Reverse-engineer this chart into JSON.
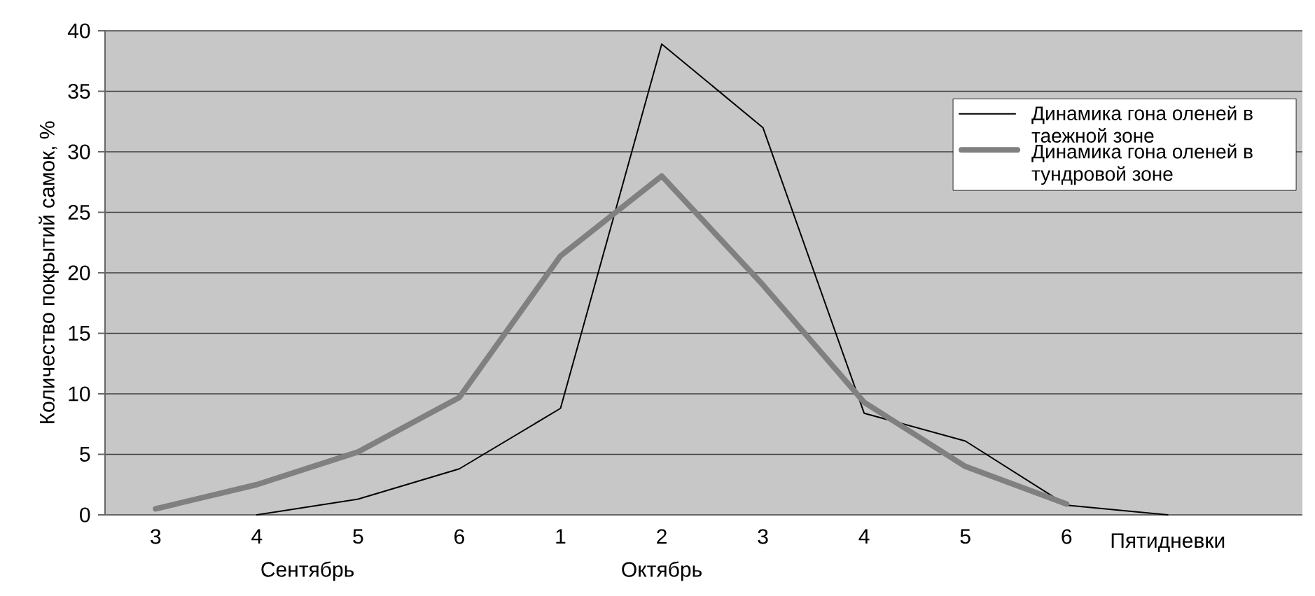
{
  "chart_data": {
    "type": "line",
    "categories": [
      "3",
      "4",
      "5",
      "6",
      "1",
      "2",
      "3",
      "4",
      "5",
      "6",
      null
    ],
    "xlabel": "Пятидневки",
    "ylabel": "Количество покрытий самок, %",
    "annotations": [
      "Сентябрь",
      "Октябрь"
    ],
    "series": [
      {
        "name": "Динамика гона оленей в таежной  зоне",
        "color": "#000000",
        "values": [
          null,
          0,
          1.3,
          3.8,
          8.8,
          38.9,
          32,
          8.4,
          6.1,
          0.8,
          0
        ]
      },
      {
        "name": "Динамика гона оленей в тундровой зоне",
        "color": "#808080",
        "values": [
          0.5,
          2.5,
          5.2,
          9.7,
          21.4,
          28,
          19,
          9.3,
          4,
          0.9,
          null
        ]
      }
    ],
    "ylim": [
      0,
      40
    ],
    "yticks": [
      0,
      5,
      10,
      15,
      20,
      25,
      30,
      35,
      40
    ],
    "grid": "y",
    "legend": "top right",
    "marker": "none",
    "line_style": "solid"
  }
}
